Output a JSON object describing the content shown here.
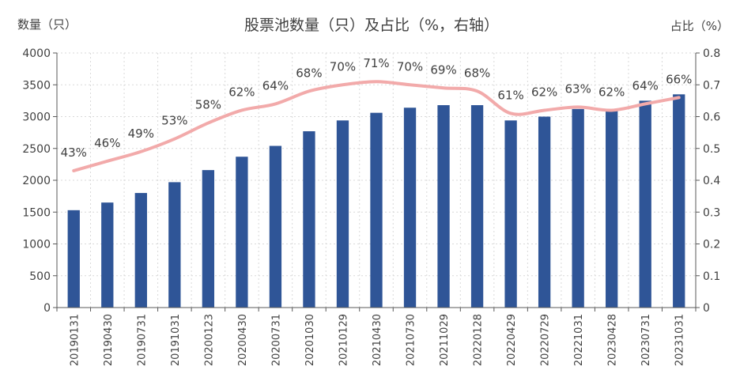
{
  "chart_data": {
    "type": "bar",
    "title": "股票池数量（只）及占比（%，右轴）",
    "ylabel_left": "数量（只）",
    "ylabel_right": "占比（%）",
    "categories": [
      "20190131",
      "20190430",
      "20190731",
      "20191031",
      "20200123",
      "20200430",
      "20200731",
      "20201030",
      "20210129",
      "20210430",
      "20210730",
      "20211029",
      "20220128",
      "20220429",
      "20220729",
      "20221031",
      "20230428",
      "20230731",
      "20231031"
    ],
    "series": [
      {
        "type": "bar",
        "axis": "left",
        "color": "#2f5597",
        "values": [
          1530,
          1650,
          1800,
          1970,
          2160,
          2370,
          2540,
          2770,
          2940,
          3060,
          3140,
          3180,
          3180,
          2940,
          3000,
          3120,
          3110,
          3250,
          3350
        ]
      },
      {
        "type": "line",
        "axis": "right",
        "color": "#f2aaaa",
        "values": [
          0.43,
          0.46,
          0.49,
          0.53,
          0.58,
          0.62,
          0.64,
          0.68,
          0.7,
          0.71,
          0.7,
          0.69,
          0.68,
          0.61,
          0.62,
          0.63,
          0.62,
          0.64,
          0.66
        ],
        "labels": [
          "43%",
          "46%",
          "49%",
          "53%",
          "58%",
          "62%",
          "64%",
          "68%",
          "70%",
          "71%",
          "70%",
          "69%",
          "68%",
          "61%",
          "62%",
          "63%",
          "62%",
          "64%",
          "66%"
        ]
      }
    ],
    "ylim_left": [
      0,
      4000
    ],
    "yticks_left": [
      0,
      500,
      1000,
      1500,
      2000,
      2500,
      3000,
      3500,
      4000
    ],
    "ylim_right": [
      0,
      0.8
    ],
    "yticks_right": [
      "0",
      "0.1",
      "0.2",
      "0.3",
      "0.4",
      "0.5",
      "0.6",
      "0.7",
      "0.8"
    ],
    "grid": true,
    "legend": "none"
  }
}
